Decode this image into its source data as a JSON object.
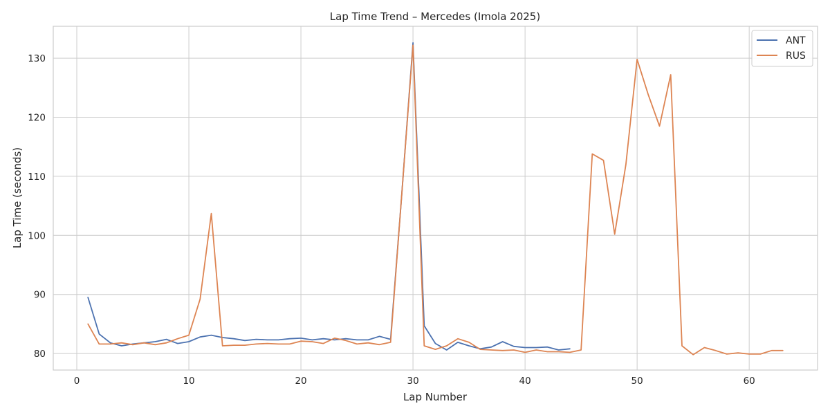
{
  "chart_data": {
    "type": "line",
    "title": "Lap Time Trend – Mercedes (Imola 2025)",
    "xlabel": "Lap Number",
    "ylabel": "Lap Time (seconds)",
    "xlim": [
      -2.1,
      66.1
    ],
    "ylim": [
      77.2,
      135.4
    ],
    "xticks": [
      0,
      10,
      20,
      30,
      40,
      50,
      60
    ],
    "yticks": [
      80,
      90,
      100,
      110,
      120,
      130
    ],
    "grid": true,
    "legend_position": "top-right",
    "series": [
      {
        "name": "ANT",
        "color": "#4c72b0",
        "x": [
          1,
          2,
          3,
          4,
          5,
          6,
          7,
          8,
          9,
          10,
          11,
          12,
          13,
          14,
          15,
          16,
          17,
          18,
          19,
          20,
          21,
          22,
          23,
          24,
          25,
          26,
          27,
          28,
          29,
          30,
          31,
          32,
          33,
          34,
          35,
          36,
          37,
          38,
          39,
          40,
          41,
          42,
          43,
          44
        ],
        "y": [
          89.5,
          83.3,
          81.8,
          81.3,
          81.6,
          81.8,
          82.0,
          82.4,
          81.7,
          82.0,
          82.8,
          83.1,
          82.7,
          82.5,
          82.2,
          82.4,
          82.3,
          82.3,
          82.5,
          82.6,
          82.3,
          82.5,
          82.3,
          82.5,
          82.3,
          82.3,
          82.9,
          82.4,
          107.0,
          132.6,
          84.7,
          81.7,
          80.6,
          81.9,
          81.3,
          80.8,
          81.1,
          82.0,
          81.2,
          81.0,
          81.0,
          81.1,
          80.6,
          80.8
        ]
      },
      {
        "name": "RUS",
        "color": "#dd8452",
        "x": [
          1,
          2,
          3,
          4,
          5,
          6,
          7,
          8,
          9,
          10,
          11,
          12,
          13,
          14,
          15,
          16,
          17,
          18,
          19,
          20,
          21,
          22,
          23,
          24,
          25,
          26,
          27,
          28,
          29,
          30,
          31,
          32,
          33,
          34,
          35,
          36,
          37,
          38,
          39,
          40,
          41,
          42,
          43,
          44,
          45,
          46,
          47,
          48,
          49,
          50,
          51,
          52,
          53,
          54,
          55,
          56,
          57,
          58,
          59,
          60,
          61,
          62,
          63
        ],
        "y": [
          85.0,
          81.6,
          81.6,
          81.8,
          81.5,
          81.8,
          81.5,
          81.8,
          82.5,
          83.1,
          89.2,
          103.7,
          81.3,
          81.4,
          81.4,
          81.6,
          81.7,
          81.6,
          81.6,
          82.1,
          82.0,
          81.7,
          82.6,
          82.2,
          81.6,
          81.8,
          81.5,
          81.9,
          107.0,
          132.2,
          81.3,
          80.7,
          81.3,
          82.5,
          81.9,
          80.7,
          80.6,
          80.5,
          80.6,
          80.2,
          80.6,
          80.3,
          80.3,
          80.2,
          80.6,
          113.8,
          112.7,
          100.2,
          112.0,
          129.8,
          123.8,
          118.5,
          127.2,
          81.3,
          79.8,
          81.0,
          80.5,
          79.9,
          80.1,
          79.9,
          79.9,
          80.5,
          80.5
        ]
      }
    ]
  }
}
